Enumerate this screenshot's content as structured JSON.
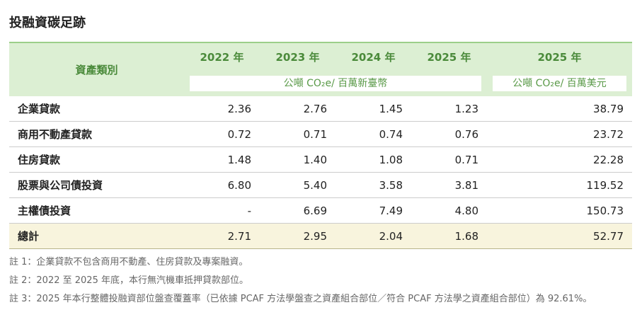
{
  "title": "投融資碳足跡",
  "table": {
    "header": {
      "category": "資產類別",
      "years": [
        "2022 年",
        "2023 年",
        "2024 年",
        "2025 年",
        "2025 年"
      ],
      "units": [
        "公噸 CO₂e/ 百萬新臺幣",
        "公噸 CO₂e/ 百萬美元"
      ]
    },
    "rows": [
      [
        "企業貸款",
        "2.36",
        "2.76",
        "1.45",
        "1.23",
        "38.79"
      ],
      [
        "商用不動產貸款",
        "0.72",
        "0.71",
        "0.74",
        "0.76",
        "23.72"
      ],
      [
        "住房貸款",
        "1.48",
        "1.40",
        "1.08",
        "0.71",
        "22.28"
      ],
      [
        "股票與公司債投資",
        "6.80",
        "5.40",
        "3.58",
        "3.81",
        "119.52"
      ],
      [
        "主權債投資",
        "-",
        "6.69",
        "7.49",
        "4.80",
        "150.73"
      ]
    ],
    "total": [
      "總計",
      "2.71",
      "2.95",
      "2.04",
      "1.68",
      "52.77"
    ]
  },
  "notes": [
    "註 1：企業貸款不包含商用不動產、住房貸款及專案融資。",
    "註 2：2022 至 2025 年底，本行無汽機車抵押貸款部位。",
    "註 3：2025 年本行整體投融資部位盤查覆蓋率（已依據 PCAF 方法學盤查之資產組合部位／符合 PCAF 方法學之資產組合部位）為 92.61%。"
  ]
}
